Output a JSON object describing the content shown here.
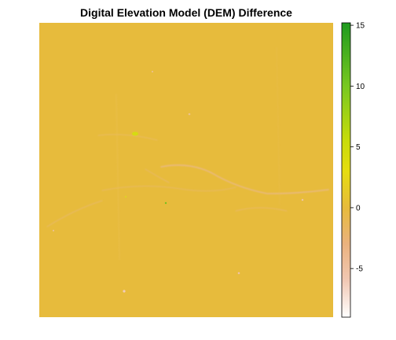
{
  "chart_data": {
    "type": "heatmap",
    "title": "Digital Elevation Model (DEM) Difference",
    "xlabel": "",
    "ylabel": "",
    "colorbar": {
      "range": [
        -9,
        15.2
      ],
      "ticks": [
        15,
        10,
        5,
        0,
        -5
      ],
      "tick_labels": [
        "15",
        "10",
        "5",
        "0",
        "-5"
      ],
      "colormap": [
        {
          "value": -9,
          "color": "#ffffff"
        },
        {
          "value": -6,
          "color": "#f1c8b4"
        },
        {
          "value": -3,
          "color": "#eab27e"
        },
        {
          "value": 0,
          "color": "#e7bb3c"
        },
        {
          "value": 3,
          "color": "#e6dd10"
        },
        {
          "value": 5.5,
          "color": "#c8dc0a"
        },
        {
          "value": 10,
          "color": "#78c820"
        },
        {
          "value": 15.2,
          "color": "#1e9a1e"
        }
      ]
    },
    "dominant_value": 0,
    "dominant_color": "#e7bb3c"
  }
}
